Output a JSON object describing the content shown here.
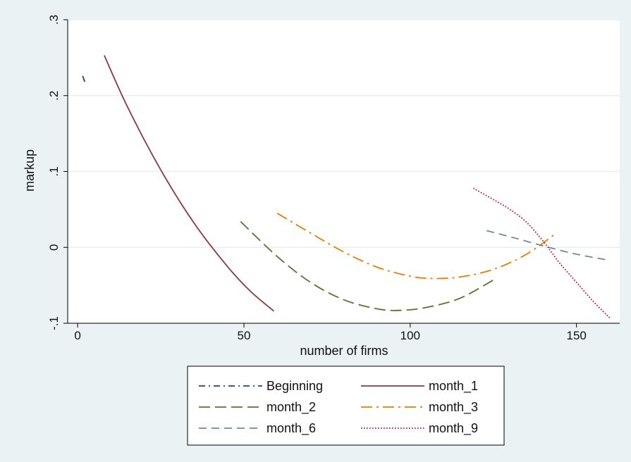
{
  "chart_data": {
    "type": "line",
    "title": "",
    "xlabel": "number of firms",
    "ylabel": "markup",
    "xlim": [
      -3,
      163
    ],
    "ylim": [
      -0.1,
      0.3
    ],
    "xticks": [
      0,
      50,
      100,
      150
    ],
    "xtick_labels": [
      "0",
      "50",
      "100",
      "150"
    ],
    "yticks": [
      -0.1,
      0,
      0.1,
      0.2,
      0.3
    ],
    "ytick_labels": [
      "-.1",
      "0",
      ".1",
      ".2",
      ".3"
    ],
    "grid": "horizontal",
    "legend_position": "bottom",
    "series": [
      {
        "name": "Beginning",
        "color": "#1a476f",
        "dash": "dashdot",
        "x": [
          1.5,
          2.3
        ],
        "y": [
          0.226,
          0.216
        ]
      },
      {
        "name": "month_1",
        "color": "#90353b",
        "dash": "solid",
        "x": [
          8,
          15,
          25,
          35,
          45,
          52,
          59
        ],
        "y": [
          0.253,
          0.185,
          0.102,
          0.032,
          -0.025,
          -0.058,
          -0.084
        ]
      },
      {
        "name": "month_2",
        "color": "#55752f",
        "dash": "longdash",
        "x": [
          49,
          60,
          70,
          80,
          90,
          97,
          105,
          115,
          125
        ],
        "y": [
          0.034,
          -0.012,
          -0.046,
          -0.069,
          -0.081,
          -0.083,
          -0.079,
          -0.067,
          -0.043
        ]
      },
      {
        "name": "month_3",
        "color": "#e37e00",
        "dash": "longdashdot",
        "x": [
          60,
          70,
          80,
          90,
          100,
          107,
          115,
          125,
          135,
          144
        ],
        "y": [
          0.045,
          0.019,
          -0.006,
          -0.026,
          -0.038,
          -0.041,
          -0.039,
          -0.029,
          -0.009,
          0.019
        ]
      },
      {
        "name": "month_6",
        "color": "#6e8e84",
        "dash": "shortdash",
        "x": [
          123,
          130,
          140,
          150,
          160
        ],
        "y": [
          0.022,
          0.014,
          0.002,
          -0.009,
          -0.017
        ]
      },
      {
        "name": "month_9",
        "color": "#c10534",
        "dash": "dotted",
        "x": [
          119,
          125,
          130,
          135,
          140,
          145,
          150,
          155,
          160
        ],
        "y": [
          0.078,
          0.063,
          0.05,
          0.033,
          0.008,
          -0.021,
          -0.046,
          -0.071,
          -0.093
        ]
      }
    ]
  }
}
